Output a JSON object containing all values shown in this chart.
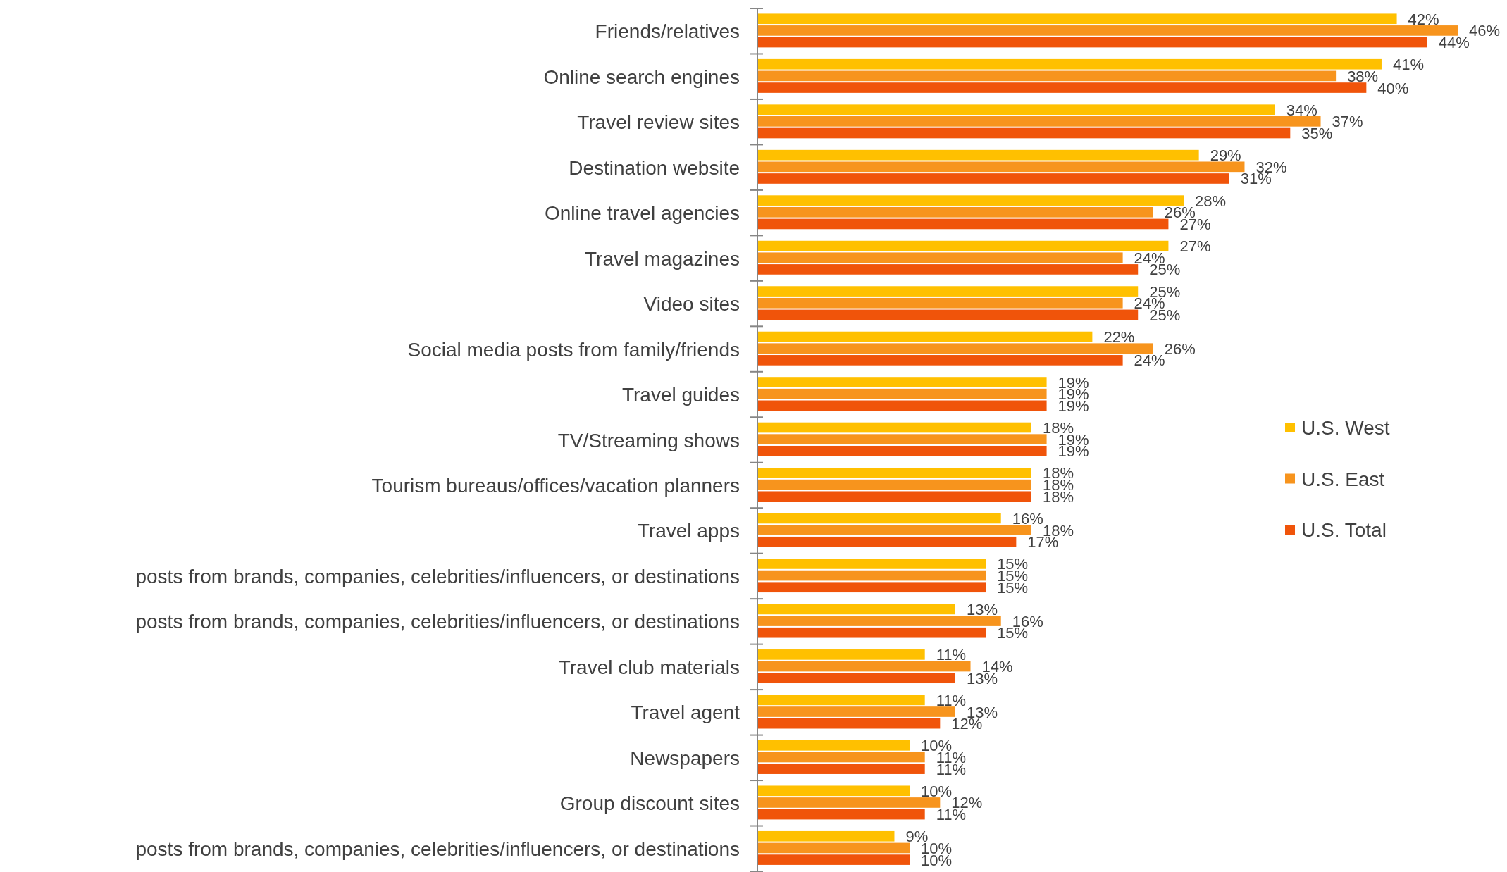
{
  "chart_data": {
    "type": "bar",
    "orientation": "horizontal",
    "legend": "right",
    "categories": [
      "Friends/relatives",
      "Online search engines",
      "Travel review sites",
      "Destination website",
      "Online travel agencies",
      "Travel magazines",
      "Video sites",
      "Social media posts from family/friends",
      "Travel guides",
      "TV/Streaming shows",
      "Tourism bureaus/offices/vacation planners",
      "Travel apps",
      "posts from brands, companies, celebrities/influencers, or destinations",
      "posts from brands, companies, celebrities/influencers, or destinations",
      "Travel club materials",
      "Travel agent",
      "Newspapers",
      "Group discount sites",
      "posts from brands, companies, celebrities/influencers, or destinations"
    ],
    "series": [
      {
        "name": "U.S. West",
        "color": "#ffc000",
        "values": [
          42,
          41,
          34,
          29,
          28,
          27,
          25,
          22,
          19,
          18,
          18,
          16,
          15,
          13,
          11,
          11,
          10,
          10,
          9
        ],
        "value_labels": [
          "42%",
          "41%",
          "34%",
          "29%",
          "28%",
          "27%",
          "25%",
          "22%",
          "19%",
          "18%",
          "18%",
          "16%",
          "15%",
          "13%",
          "11%",
          "11%",
          "10%",
          "10%",
          "9%"
        ]
      },
      {
        "name": "U.S. East",
        "color": "#f7941d",
        "values": [
          46,
          38,
          37,
          32,
          26,
          24,
          24,
          26,
          19,
          19,
          18,
          18,
          15,
          16,
          14,
          13,
          11,
          12,
          10
        ],
        "value_labels": [
          "46%",
          "38%",
          "37%",
          "32%",
          "26%",
          "24%",
          "24%",
          "26%",
          "19%",
          "19%",
          "18%",
          "18%",
          "15%",
          "16%",
          "14%",
          "13%",
          "11%",
          "12%",
          "10%"
        ]
      },
      {
        "name": "U.S. Total",
        "color": "#f0540a",
        "values": [
          44,
          40,
          35,
          31,
          27,
          25,
          25,
          24,
          19,
          19,
          18,
          17,
          15,
          15,
          13,
          12,
          11,
          11,
          10
        ],
        "value_labels": [
          "44%",
          "40%",
          "35%",
          "31%",
          "27%",
          "25%",
          "25%",
          "24%",
          "19%",
          "19%",
          "18%",
          "17%",
          "15%",
          "15%",
          "13%",
          "12%",
          "11%",
          "11%",
          "10%"
        ]
      }
    ]
  }
}
